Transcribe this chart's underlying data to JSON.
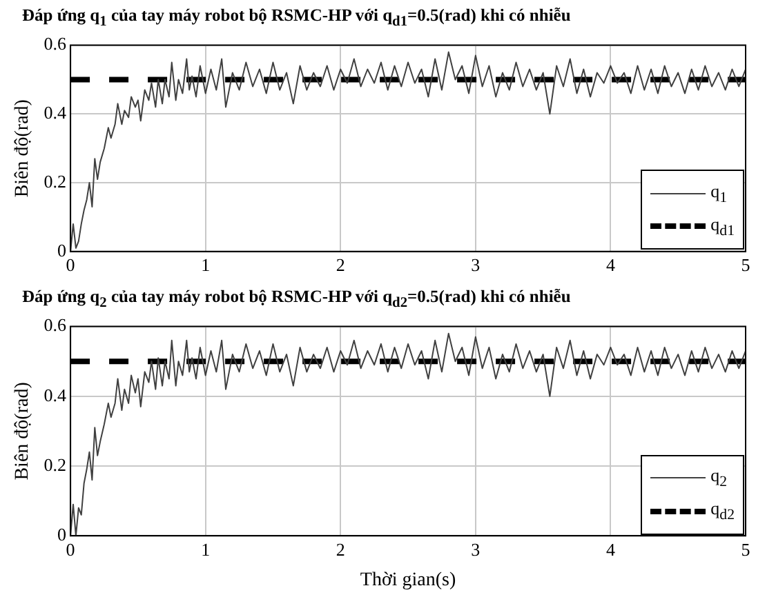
{
  "chart_data": [
    {
      "type": "line",
      "title": "Đáp ứng q$_{1}$ của tay máy robot bộ RSMC-HP với q$_{d1}$=0.5(rad) khi có nhiễu",
      "ylabel": "Biên độ(rad)",
      "xlim": [
        0,
        5
      ],
      "xticks": [
        0,
        1,
        2,
        3,
        4,
        5
      ],
      "ylim": [
        0,
        0.6
      ],
      "yticks": [
        0,
        0.2,
        0.4,
        0.6
      ],
      "grid": true,
      "legend": "bottom right",
      "marker": "none",
      "series": [
        {
          "name": "q$_{1}$",
          "color": "#404040",
          "line_style": "solid",
          "x": [
            0,
            0.02,
            0.04,
            0.06,
            0.08,
            0.1,
            0.12,
            0.14,
            0.16,
            0.18,
            0.2,
            0.22,
            0.25,
            0.28,
            0.3,
            0.33,
            0.35,
            0.38,
            0.4,
            0.43,
            0.45,
            0.48,
            0.5,
            0.52,
            0.55,
            0.58,
            0.6,
            0.63,
            0.65,
            0.68,
            0.7,
            0.73,
            0.75,
            0.78,
            0.8,
            0.83,
            0.86,
            0.88,
            0.9,
            0.93,
            0.96,
            1.0,
            1.04,
            1.08,
            1.12,
            1.15,
            1.2,
            1.25,
            1.3,
            1.35,
            1.4,
            1.45,
            1.5,
            1.55,
            1.6,
            1.65,
            1.7,
            1.75,
            1.8,
            1.85,
            1.9,
            1.95,
            2.0,
            2.05,
            2.1,
            2.15,
            2.2,
            2.25,
            2.3,
            2.35,
            2.4,
            2.45,
            2.5,
            2.55,
            2.6,
            2.65,
            2.7,
            2.75,
            2.8,
            2.85,
            2.9,
            2.95,
            3.0,
            3.05,
            3.1,
            3.15,
            3.2,
            3.25,
            3.3,
            3.35,
            3.4,
            3.45,
            3.5,
            3.55,
            3.6,
            3.65,
            3.7,
            3.75,
            3.8,
            3.85,
            3.9,
            3.95,
            4.0,
            4.05,
            4.1,
            4.15,
            4.2,
            4.25,
            4.3,
            4.35,
            4.4,
            4.45,
            4.5,
            4.55,
            4.6,
            4.65,
            4.7,
            4.75,
            4.8,
            4.85,
            4.9,
            4.95,
            5.0
          ],
          "values": [
            0,
            0.08,
            0.01,
            0.03,
            0.08,
            0.12,
            0.15,
            0.2,
            0.13,
            0.27,
            0.21,
            0.26,
            0.3,
            0.36,
            0.33,
            0.37,
            0.43,
            0.37,
            0.41,
            0.39,
            0.45,
            0.42,
            0.44,
            0.38,
            0.47,
            0.44,
            0.49,
            0.42,
            0.5,
            0.43,
            0.5,
            0.45,
            0.55,
            0.44,
            0.5,
            0.46,
            0.56,
            0.47,
            0.51,
            0.45,
            0.54,
            0.46,
            0.53,
            0.47,
            0.56,
            0.42,
            0.52,
            0.47,
            0.55,
            0.48,
            0.53,
            0.46,
            0.55,
            0.47,
            0.52,
            0.43,
            0.54,
            0.47,
            0.52,
            0.48,
            0.54,
            0.47,
            0.53,
            0.49,
            0.56,
            0.48,
            0.53,
            0.49,
            0.55,
            0.47,
            0.54,
            0.48,
            0.55,
            0.49,
            0.53,
            0.45,
            0.56,
            0.47,
            0.58,
            0.5,
            0.54,
            0.46,
            0.57,
            0.48,
            0.54,
            0.45,
            0.52,
            0.47,
            0.55,
            0.48,
            0.53,
            0.47,
            0.52,
            0.4,
            0.54,
            0.48,
            0.56,
            0.46,
            0.53,
            0.45,
            0.52,
            0.49,
            0.54,
            0.49,
            0.52,
            0.46,
            0.54,
            0.47,
            0.53,
            0.46,
            0.54,
            0.48,
            0.52,
            0.46,
            0.53,
            0.47,
            0.54,
            0.48,
            0.52,
            0.47,
            0.53,
            0.48,
            0.53
          ]
        },
        {
          "name": "q$_{d1}$",
          "color": "#000000",
          "line_style": "dashed",
          "x": [
            0,
            5
          ],
          "values": [
            0.5,
            0.5
          ]
        }
      ]
    },
    {
      "type": "line",
      "title": "Đáp ứng q$_{2}$ của tay máy robot bộ RSMC-HP với q$_{d2}$=0.5(rad) khi có nhiễu",
      "xlabel": "Thời gian(s)",
      "ylabel": "Biên độ(rad)",
      "xlim": [
        0,
        5
      ],
      "xticks": [
        0,
        1,
        2,
        3,
        4,
        5
      ],
      "ylim": [
        0,
        0.6
      ],
      "yticks": [
        0,
        0.2,
        0.4,
        0.6
      ],
      "grid": true,
      "legend": "bottom right",
      "marker": "none",
      "series": [
        {
          "name": "q$_{2}$",
          "color": "#404040",
          "line_style": "solid",
          "x": [
            0,
            0.02,
            0.04,
            0.06,
            0.08,
            0.1,
            0.12,
            0.14,
            0.16,
            0.18,
            0.2,
            0.22,
            0.25,
            0.28,
            0.3,
            0.33,
            0.35,
            0.38,
            0.4,
            0.43,
            0.45,
            0.48,
            0.5,
            0.52,
            0.55,
            0.58,
            0.6,
            0.63,
            0.65,
            0.68,
            0.7,
            0.73,
            0.75,
            0.78,
            0.8,
            0.83,
            0.86,
            0.88,
            0.9,
            0.93,
            0.96,
            1.0,
            1.04,
            1.08,
            1.12,
            1.15,
            1.2,
            1.25,
            1.3,
            1.35,
            1.4,
            1.45,
            1.5,
            1.55,
            1.6,
            1.65,
            1.7,
            1.75,
            1.8,
            1.85,
            1.9,
            1.95,
            2.0,
            2.05,
            2.1,
            2.15,
            2.2,
            2.25,
            2.3,
            2.35,
            2.4,
            2.45,
            2.5,
            2.55,
            2.6,
            2.65,
            2.7,
            2.75,
            2.8,
            2.85,
            2.9,
            2.95,
            3.0,
            3.05,
            3.1,
            3.15,
            3.2,
            3.25,
            3.3,
            3.35,
            3.4,
            3.45,
            3.5,
            3.55,
            3.6,
            3.65,
            3.7,
            3.75,
            3.8,
            3.85,
            3.9,
            3.95,
            4.0,
            4.05,
            4.1,
            4.15,
            4.2,
            4.25,
            4.3,
            4.35,
            4.4,
            4.45,
            4.5,
            4.55,
            4.6,
            4.65,
            4.7,
            4.75,
            4.8,
            4.85,
            4.9,
            4.95,
            5.0
          ],
          "values": [
            0,
            0.09,
            0.0,
            0.08,
            0.06,
            0.15,
            0.19,
            0.24,
            0.16,
            0.31,
            0.23,
            0.27,
            0.32,
            0.38,
            0.34,
            0.38,
            0.45,
            0.36,
            0.42,
            0.38,
            0.46,
            0.41,
            0.45,
            0.37,
            0.47,
            0.44,
            0.5,
            0.42,
            0.51,
            0.43,
            0.5,
            0.45,
            0.56,
            0.43,
            0.5,
            0.46,
            0.56,
            0.47,
            0.51,
            0.45,
            0.54,
            0.46,
            0.53,
            0.47,
            0.56,
            0.42,
            0.52,
            0.47,
            0.55,
            0.48,
            0.53,
            0.46,
            0.55,
            0.47,
            0.52,
            0.43,
            0.54,
            0.47,
            0.52,
            0.48,
            0.54,
            0.47,
            0.53,
            0.49,
            0.56,
            0.48,
            0.53,
            0.49,
            0.55,
            0.47,
            0.54,
            0.48,
            0.55,
            0.49,
            0.53,
            0.45,
            0.56,
            0.47,
            0.58,
            0.5,
            0.54,
            0.46,
            0.57,
            0.48,
            0.54,
            0.45,
            0.52,
            0.47,
            0.55,
            0.48,
            0.53,
            0.47,
            0.52,
            0.4,
            0.54,
            0.48,
            0.56,
            0.46,
            0.53,
            0.45,
            0.52,
            0.49,
            0.54,
            0.49,
            0.52,
            0.46,
            0.54,
            0.47,
            0.53,
            0.46,
            0.54,
            0.48,
            0.52,
            0.46,
            0.53,
            0.47,
            0.54,
            0.48,
            0.52,
            0.47,
            0.53,
            0.48,
            0.53
          ]
        },
        {
          "name": "q$_{d2}$",
          "color": "#000000",
          "line_style": "dashed",
          "x": [
            0,
            5
          ],
          "values": [
            0.5,
            0.5
          ]
        }
      ]
    }
  ]
}
